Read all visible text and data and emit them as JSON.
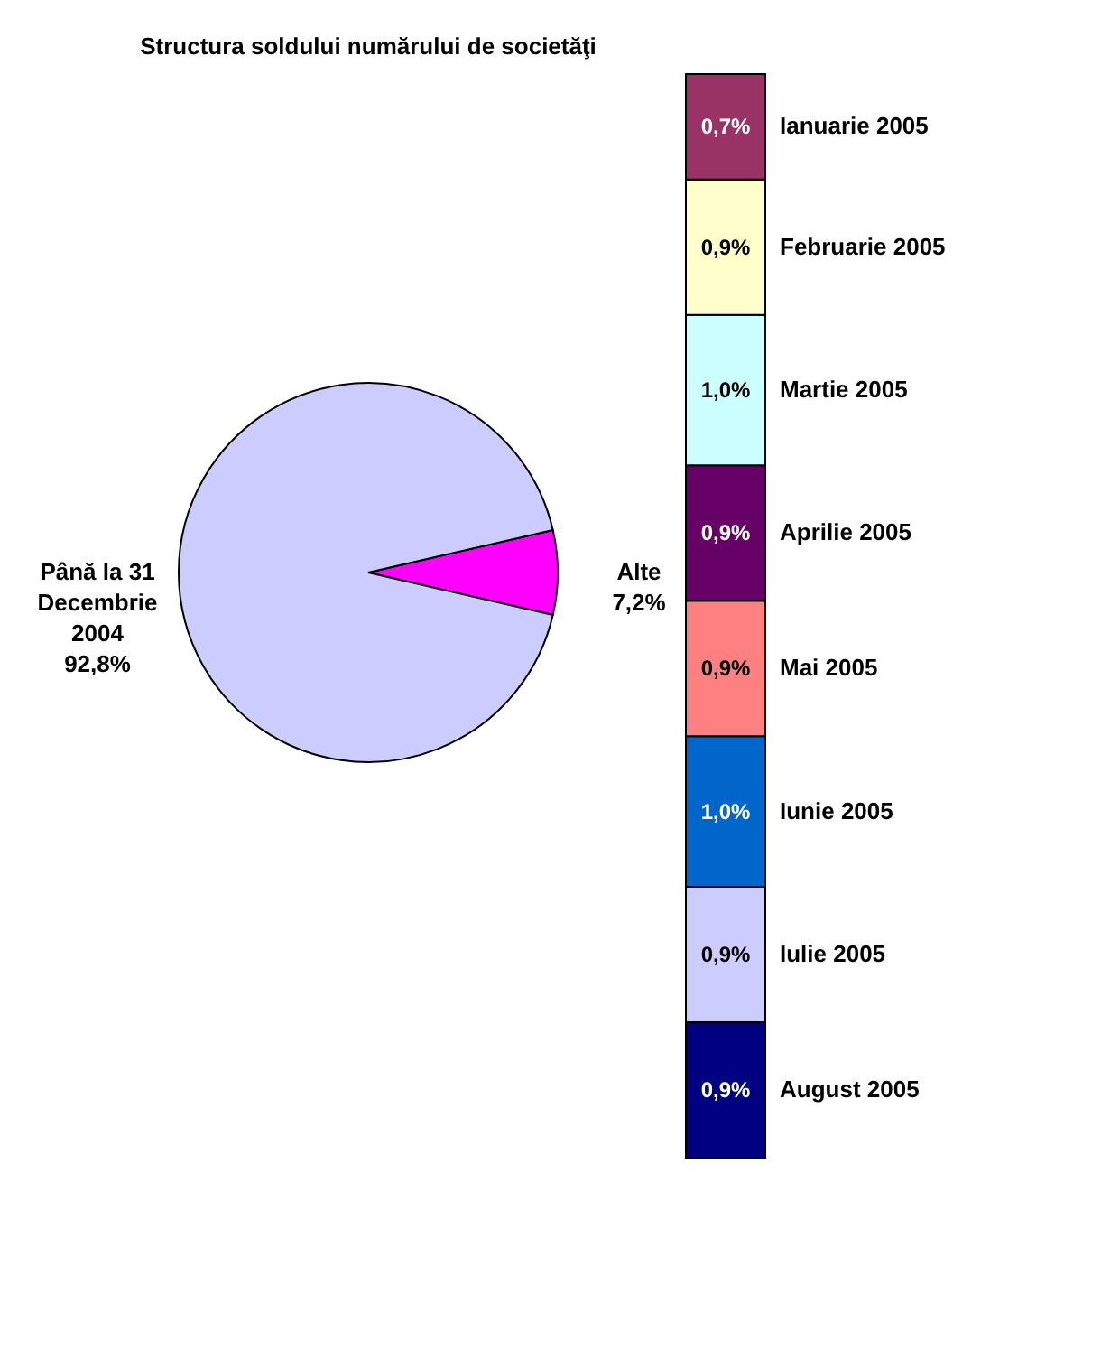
{
  "chart_data": [
    {
      "type": "pie",
      "title": "Structura soldului numărului de societăţi",
      "categories": [
        "Alte",
        "Până la 31 Decembrie 2004"
      ],
      "values": [
        7.2,
        92.8
      ],
      "colors": [
        "#ff00ff",
        "#ccccff"
      ],
      "value_labels": [
        "7,2%",
        "92,8%"
      ]
    },
    {
      "type": "bar",
      "stacked": true,
      "categories": [
        null
      ],
      "series": [
        {
          "name": "August 2005",
          "color": "#000080",
          "values": [
            0.9
          ],
          "value_labels": [
            "0,9%"
          ]
        },
        {
          "name": "Iulie 2005",
          "color": "#ccccff",
          "values": [
            0.9
          ],
          "value_labels": [
            "0,9%"
          ]
        },
        {
          "name": "Iunie 2005",
          "color": "#0066cc",
          "values": [
            1.0
          ],
          "value_labels": [
            "1,0%"
          ]
        },
        {
          "name": "Mai 2005",
          "color": "#ff8080",
          "values": [
            0.9
          ],
          "value_labels": [
            "0,9%"
          ]
        },
        {
          "name": "Aprilie 2005",
          "color": "#660066",
          "values": [
            0.9
          ],
          "value_labels": [
            "0,9%"
          ]
        },
        {
          "name": "Martie 2005",
          "color": "#ccffff",
          "values": [
            1.0
          ],
          "value_labels": [
            "1,0%"
          ]
        },
        {
          "name": "Februarie 2005",
          "color": "#ffffcc",
          "values": [
            0.9
          ],
          "value_labels": [
            "0,9%"
          ]
        },
        {
          "name": "Ianuarie 2005",
          "color": "#993366",
          "values": [
            0.7
          ],
          "value_labels": [
            "0,7%"
          ]
        }
      ]
    }
  ]
}
